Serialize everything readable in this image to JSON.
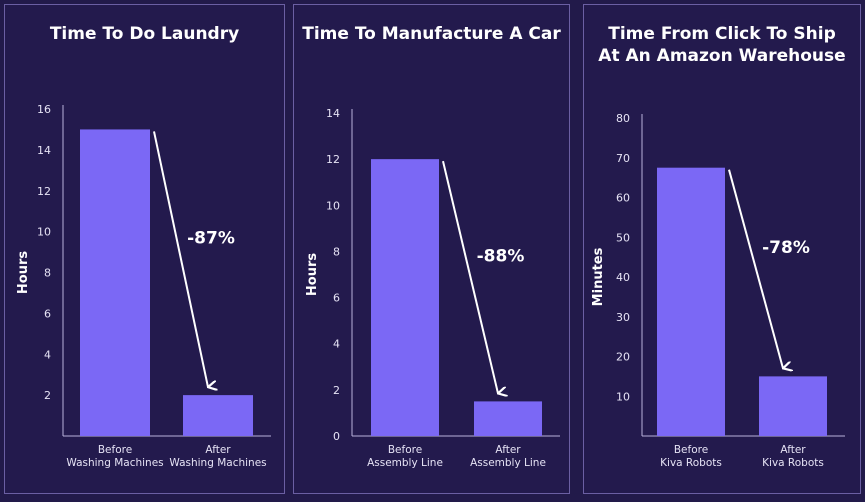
{
  "chart_data": [
    {
      "type": "bar",
      "title": "Time To Do Laundry",
      "ylabel": "Hours",
      "ylim": [
        0,
        16
      ],
      "yticks": [
        2,
        4,
        6,
        8,
        10,
        12,
        14,
        16
      ],
      "categories": [
        [
          "Before",
          "Washing Machines"
        ],
        [
          "After",
          "Washing Machines"
        ]
      ],
      "values": [
        15,
        2
      ],
      "annotation": "-87%",
      "bar_color": "#7b68f5"
    },
    {
      "type": "bar",
      "title": "Time To Manufacture A Car",
      "ylabel": "Hours",
      "ylim": [
        0,
        14
      ],
      "yticks": [
        0,
        2,
        4,
        6,
        8,
        10,
        12,
        14
      ],
      "categories": [
        [
          "Before",
          "Assembly Line"
        ],
        [
          "After",
          "Assembly Line"
        ]
      ],
      "values": [
        12,
        1.5
      ],
      "annotation": "-88%",
      "bar_color": "#7b68f5"
    },
    {
      "type": "bar",
      "title": "Time From Click To Ship\nAt An Amazon Warehouse",
      "ylabel": "Minutes",
      "ylim": [
        0,
        80
      ],
      "yticks": [
        10,
        20,
        30,
        40,
        50,
        60,
        70,
        80
      ],
      "categories": [
        [
          "Before",
          "Kiva Robots"
        ],
        [
          "After",
          "Kiva Robots"
        ]
      ],
      "values": [
        67.5,
        15
      ],
      "annotation": "-78%",
      "bar_color": "#7b68f5"
    }
  ]
}
